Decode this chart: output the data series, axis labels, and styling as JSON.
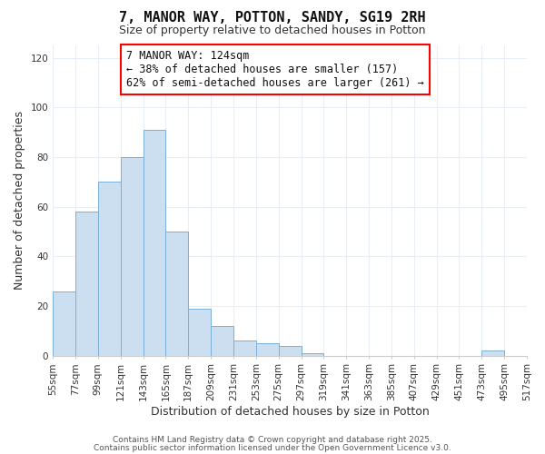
{
  "title": "7, MANOR WAY, POTTON, SANDY, SG19 2RH",
  "subtitle": "Size of property relative to detached houses in Potton",
  "xlabel": "Distribution of detached houses by size in Potton",
  "ylabel": "Number of detached properties",
  "bar_color": "#ccdff0",
  "bar_edge_color": "#7ab0d8",
  "background_color": "#ffffff",
  "grid_color": "#e8eef5",
  "bin_edges": [
    55,
    77,
    99,
    121,
    143,
    165,
    187,
    209,
    231,
    253,
    275,
    297,
    319,
    341,
    363,
    385,
    407,
    429,
    451,
    473,
    495
  ],
  "bar_heights": [
    26,
    58,
    70,
    80,
    91,
    50,
    19,
    12,
    6,
    5,
    4,
    1,
    0,
    0,
    0,
    0,
    0,
    0,
    0,
    2
  ],
  "ylim": [
    0,
    125
  ],
  "yticks": [
    0,
    20,
    40,
    60,
    80,
    100,
    120
  ],
  "annotation_line1": "7 MANOR WAY: 124sqm",
  "annotation_line2": "← 38% of detached houses are smaller (157)",
  "annotation_line3": "62% of semi-detached houses are larger (261) →",
  "annotation_box_color": "white",
  "annotation_box_edge": "red",
  "footnote1": "Contains HM Land Registry data © Crown copyright and database right 2025.",
  "footnote2": "Contains public sector information licensed under the Open Government Licence v3.0.",
  "title_fontsize": 11,
  "subtitle_fontsize": 9,
  "tick_fontsize": 7.5,
  "label_fontsize": 9,
  "annotation_fontsize": 8.5
}
